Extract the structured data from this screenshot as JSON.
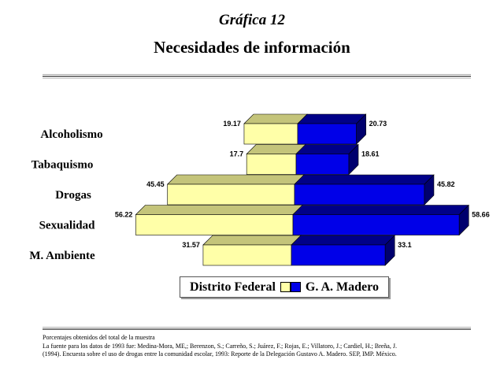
{
  "header": {
    "supertitle": "Gráfica 12",
    "title": "Necesidades de información"
  },
  "chart_data": {
    "type": "bar",
    "orientation": "horizontal-butterfly-3d",
    "categories": [
      "Alcoholismo",
      "Tabaquismo",
      "Drogas",
      "Sexualidad",
      "M. Ambiente"
    ],
    "series": [
      {
        "name": "Distrito Federal",
        "values": [
          19.17,
          17.7,
          45.45,
          56.22,
          31.57
        ],
        "color": "#ffffa8",
        "side": "left"
      },
      {
        "name": "G. A. Madero",
        "values": [
          20.73,
          18.61,
          45.82,
          58.66,
          33.1
        ],
        "color": "#0000e8",
        "side": "right"
      }
    ],
    "legend_position": "bottom",
    "grid": false
  },
  "legend": {
    "left_label": "Distrito Federal",
    "right_label": "G. A. Madero"
  },
  "footnotes": [
    "Porcentajes obtenidos del total de la muestra",
    "La fuente para los datos de 1993 fue: Medina-Mora, ME,; Berenzon, S.; Carreño, S.; Juárez, F.; Rojas, E.; Villatoro, J.; Cardiel, H.; Breña, J.",
    "(1994). Encuesta sobre el uso de drogas entre la comunidad escolar, 1993: Reporte de la Delegación Gustavo A. Madero. SEP, IMP. México."
  ]
}
